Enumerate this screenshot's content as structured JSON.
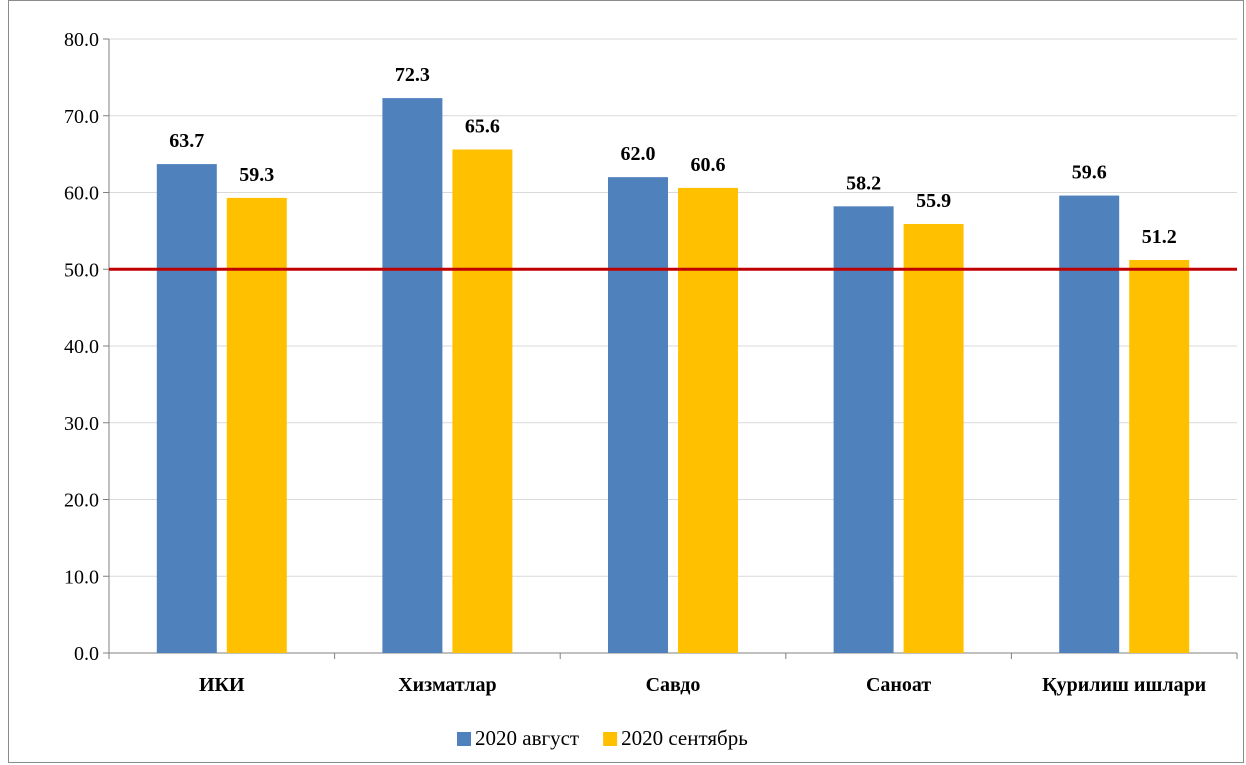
{
  "chart_data": {
    "type": "bar",
    "title": "",
    "xlabel": "",
    "ylabel": "",
    "categories": [
      "ИКИ",
      "Хизматлар",
      "Савдо",
      "Саноат",
      "Қурилиш ишлари"
    ],
    "series": [
      {
        "name": "2020 август",
        "values": [
          63.7,
          72.3,
          62.0,
          58.2,
          59.6
        ],
        "color": "#4f81bd"
      },
      {
        "name": "2020 сентябрь",
        "values": [
          59.3,
          65.6,
          60.6,
          55.9,
          51.2
        ],
        "color": "#ffc000"
      }
    ],
    "data_labels": [
      [
        "63.7",
        "72.3",
        "62.0",
        "58.2",
        "59.6"
      ],
      [
        "59.3",
        "65.6",
        "60.6",
        "55.9",
        "51.2"
      ]
    ],
    "ylim": [
      0,
      80
    ],
    "yticks": [
      "0.0",
      "10.0",
      "20.0",
      "30.0",
      "40.0",
      "50.0",
      "60.0",
      "70.0",
      "80.0"
    ],
    "reference_line": {
      "value": 50,
      "color": "#c00000"
    },
    "grid": true,
    "gridline_color": "#d9d9d9",
    "legend_position": "bottom"
  }
}
